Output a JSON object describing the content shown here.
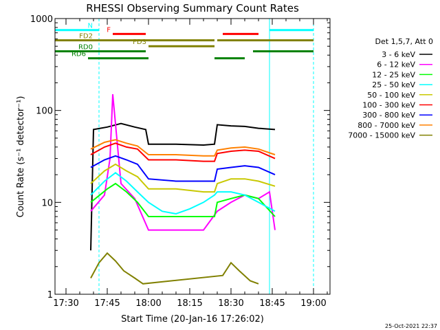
{
  "chart_data": {
    "type": "line",
    "title": "RHESSI Observing Summary Count Rates",
    "xlabel": "Start Time (20-Jan-16 17:26:02)",
    "ylabel": "Count Rate (s⁻¹ detector⁻¹)",
    "yscale": "log",
    "ylim": [
      1,
      1000
    ],
    "xlim": [
      "17:26",
      "19:06"
    ],
    "x_ticks": [
      "17:30",
      "17:45",
      "18:00",
      "18:15",
      "18:30",
      "18:45",
      "19:00"
    ],
    "y_ticks": [
      "1",
      "10",
      "100",
      "1000"
    ],
    "legend_title": "Det 1,5,7, Att 0",
    "legend_position": "right",
    "timestamp": "25-Oct-2021 22:37",
    "series": [
      {
        "name": "3 - 6 keV",
        "color": "#000000",
        "x": [
          "17:39",
          "17:40",
          "17:45",
          "17:50",
          "17:55",
          "17:59",
          "18:00",
          "18:10",
          "18:20",
          "18:24",
          "18:25",
          "18:30",
          "18:35",
          "18:40",
          "18:46"
        ],
        "y": [
          3,
          62,
          66,
          72,
          66,
          62,
          43,
          43,
          42,
          43,
          70,
          68,
          67,
          64,
          62
        ]
      },
      {
        "name": "6 - 12 keV",
        "color": "#ff00ff",
        "x": [
          "17:39",
          "17:44",
          "17:46",
          "17:47",
          "17:50",
          "17:55",
          "18:00",
          "18:10",
          "18:20",
          "18:25",
          "18:30",
          "18:35",
          "18:40",
          "18:44",
          "18:46"
        ],
        "y": [
          8,
          12,
          30,
          150,
          16,
          11,
          5,
          5,
          5,
          8,
          10,
          12,
          11,
          13,
          5
        ]
      },
      {
        "name": "12 - 25 keV",
        "color": "#00ff00",
        "x": [
          "17:39",
          "17:45",
          "17:48",
          "17:52",
          "17:56",
          "18:00",
          "18:10",
          "18:20",
          "18:24",
          "18:25",
          "18:30",
          "18:35",
          "18:40",
          "18:46"
        ],
        "y": [
          10,
          14,
          16,
          13,
          10,
          7,
          7,
          7,
          7,
          10,
          11,
          12,
          11,
          7
        ]
      },
      {
        "name": "25 - 50 keV",
        "color": "#00ffff",
        "x": [
          "17:39",
          "17:44",
          "17:48",
          "17:52",
          "17:56",
          "18:00",
          "18:05",
          "18:10",
          "18:15",
          "18:20",
          "18:24",
          "18:25",
          "18:30",
          "18:35",
          "18:40",
          "18:46"
        ],
        "y": [
          12,
          17,
          21,
          17,
          13,
          10,
          8,
          7.5,
          8.5,
          10,
          12,
          13,
          13,
          12,
          10,
          8
        ]
      },
      {
        "name": "50 - 100 keV",
        "color": "#c8c800",
        "x": [
          "17:39",
          "17:44",
          "17:48",
          "17:52",
          "17:56",
          "18:00",
          "18:10",
          "18:20",
          "18:24",
          "18:25",
          "18:30",
          "18:35",
          "18:40",
          "18:46"
        ],
        "y": [
          16,
          22,
          26,
          22,
          19,
          14,
          14,
          13,
          13,
          16,
          18,
          18,
          17,
          15
        ]
      },
      {
        "name": "100 - 300 keV",
        "color": "#ff0000",
        "x": [
          "17:39",
          "17:44",
          "17:48",
          "17:52",
          "17:56",
          "18:00",
          "18:10",
          "18:20",
          "18:24",
          "18:25",
          "18:30",
          "18:35",
          "18:40",
          "18:46"
        ],
        "y": [
          33,
          40,
          44,
          40,
          38,
          29,
          29,
          28,
          28,
          34,
          36,
          37,
          36,
          30
        ]
      },
      {
        "name": "300 - 800 keV",
        "color": "#0000ff",
        "x": [
          "17:39",
          "17:44",
          "17:48",
          "17:52",
          "17:56",
          "18:00",
          "18:10",
          "18:20",
          "18:24",
          "18:25",
          "18:30",
          "18:35",
          "18:40",
          "18:46"
        ],
        "y": [
          24,
          29,
          32,
          29,
          26,
          18,
          17,
          17,
          17,
          23,
          24,
          25,
          24,
          20
        ]
      },
      {
        "name": "800 - 7000 keV",
        "color": "#ff8000",
        "x": [
          "17:39",
          "17:44",
          "17:48",
          "17:52",
          "17:56",
          "18:00",
          "18:10",
          "18:20",
          "18:24",
          "18:25",
          "18:30",
          "18:35",
          "18:40",
          "18:46"
        ],
        "y": [
          38,
          45,
          48,
          44,
          41,
          33,
          33,
          32,
          32,
          37,
          39,
          40,
          38,
          33
        ]
      },
      {
        "name": "7000 - 15000 keV",
        "color": "#808000",
        "x": [
          "17:39",
          "17:42",
          "17:45",
          "17:48",
          "17:51",
          "17:55",
          "17:58",
          "18:27",
          "18:30",
          "18:33",
          "18:37",
          "18:40"
        ],
        "y": [
          1.5,
          2.2,
          2.8,
          2.3,
          1.8,
          1.5,
          1.3,
          1.6,
          2.2,
          1.8,
          1.4,
          1.3
        ]
      }
    ],
    "flag_bars": [
      {
        "label": "N",
        "color": "#00ffff",
        "y": 750,
        "segments": [
          [
            "17:26",
            "17:42"
          ],
          [
            "18:44",
            "19:00"
          ]
        ]
      },
      {
        "label": "F",
        "color": "#ff0000",
        "y": 680,
        "segments": [
          [
            "17:47",
            "17:59"
          ],
          [
            "18:27",
            "18:40"
          ]
        ]
      },
      {
        "label": "FD2",
        "color": "#808000",
        "y": 580,
        "segments": [
          [
            "17:26",
            "18:24"
          ],
          [
            "18:25",
            "19:00"
          ]
        ]
      },
      {
        "label": "FD3",
        "color": "#808000",
        "y": 500,
        "segments": [
          [
            "18:00",
            "18:24"
          ]
        ]
      },
      {
        "label": "RD0",
        "color": "#008000",
        "y": 440,
        "segments": [
          [
            "17:26",
            "17:59"
          ],
          [
            "18:38",
            "19:00"
          ]
        ]
      },
      {
        "label": "RD6",
        "color": "#008000",
        "y": 370,
        "segments": [
          [
            "17:38",
            "18:00"
          ],
          [
            "18:24",
            "18:35"
          ]
        ]
      }
    ],
    "vertical_markers": [
      {
        "x": "17:26",
        "color": "#00ffff",
        "style": "solid"
      },
      {
        "x": "17:42",
        "color": "#00ffff",
        "style": "dashed"
      },
      {
        "x": "18:44",
        "color": "#00ffff",
        "style": "solid"
      },
      {
        "x": "19:00",
        "color": "#00ffff",
        "style": "dashed"
      }
    ]
  }
}
